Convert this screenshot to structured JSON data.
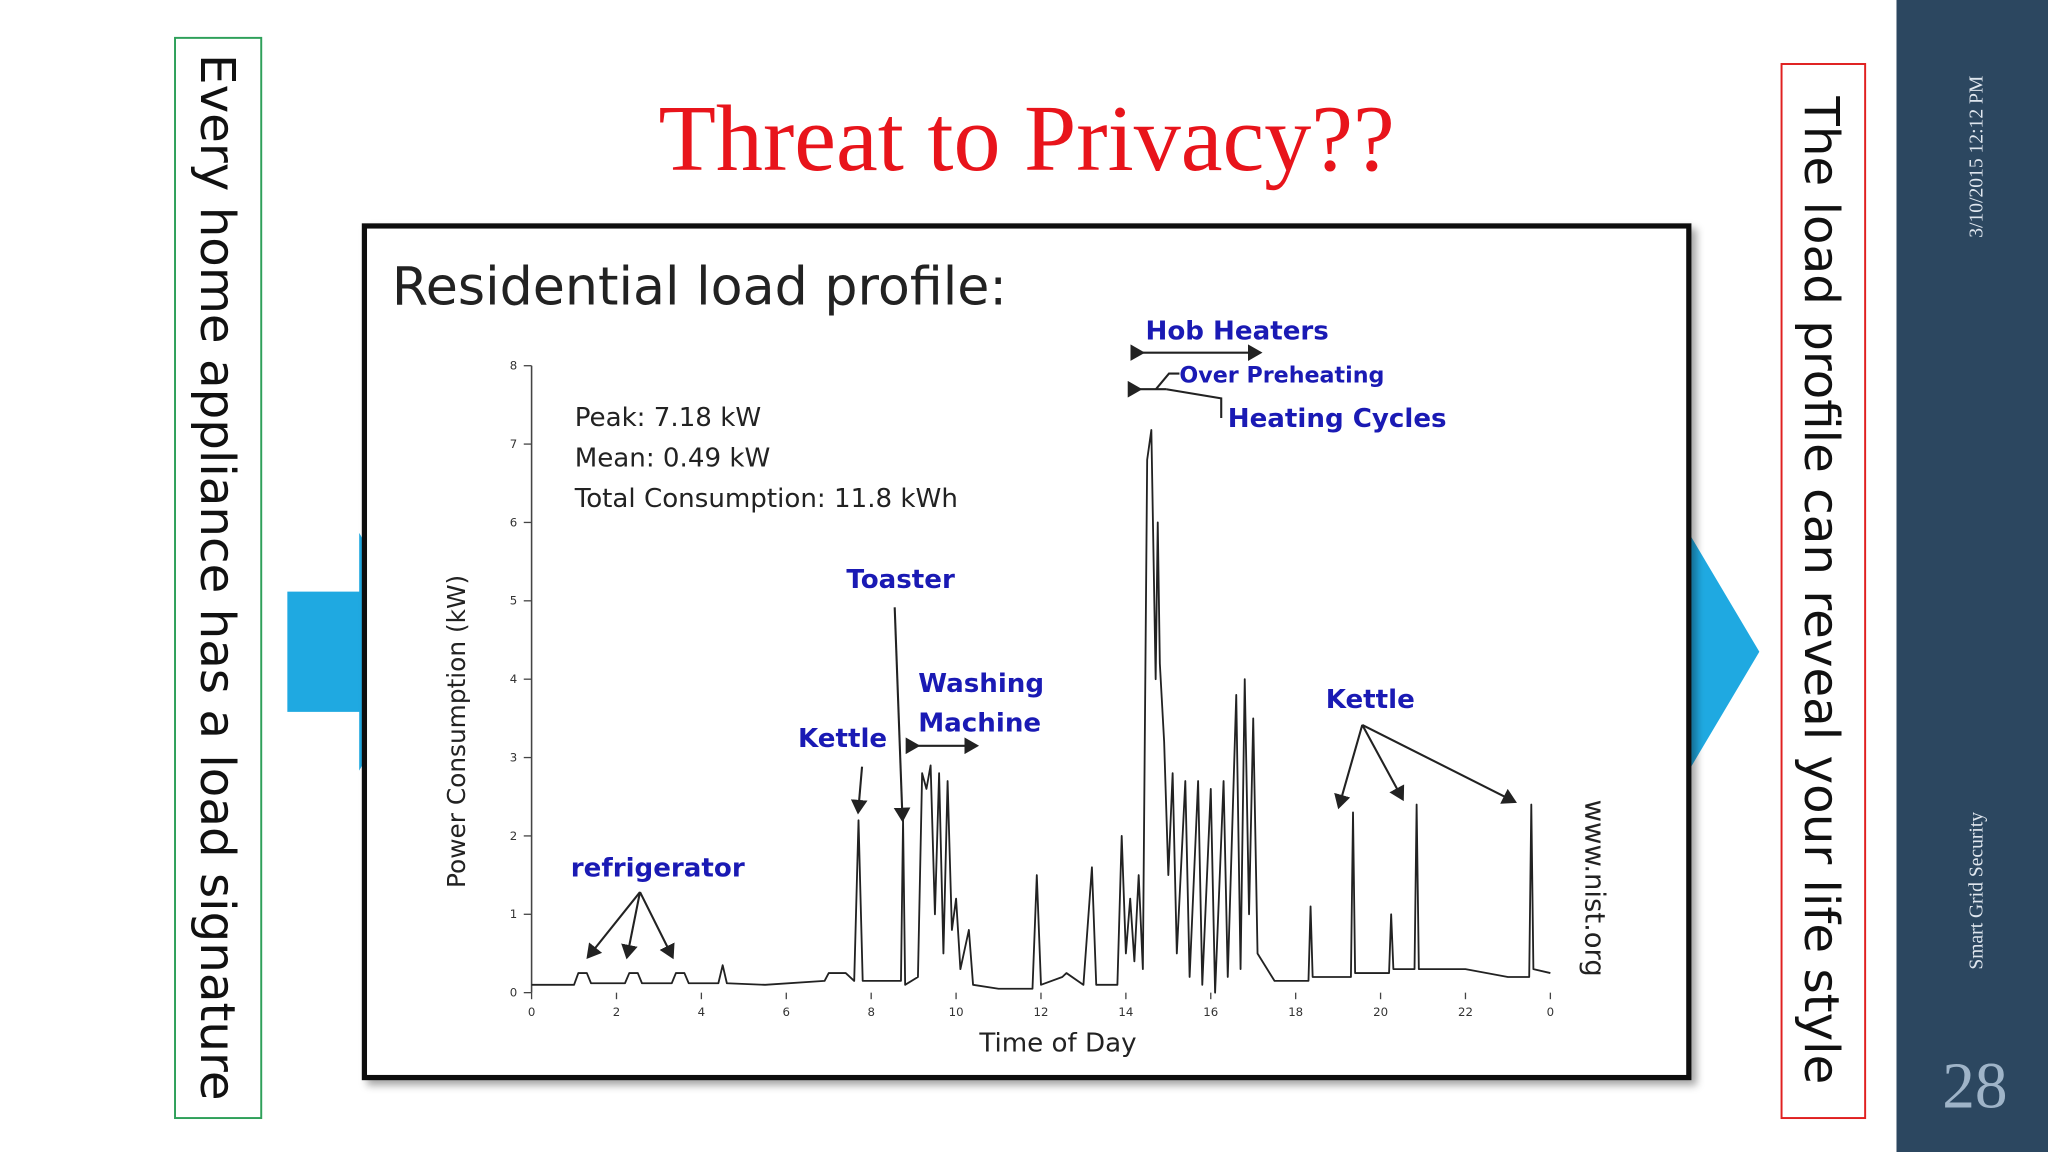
{
  "slide": {
    "title": "Threat to Privacy??",
    "left_note": "Every home appliance has a load signature",
    "right_note": "The load profile can reveal your life style",
    "date": "3/10/2015 12:12 PM",
    "footer": "Smart Grid Security",
    "page_number": "28"
  },
  "chart_data": {
    "type": "line",
    "title": "Residential load profile:",
    "xlabel": "Time of Day",
    "ylabel": "Power Consumption  (kW)",
    "source": "www.nist.org",
    "stats": [
      "Peak: 7.18 kW",
      "Mean: 0.49 kW",
      "Total Consumption: 11.8 kWh"
    ],
    "annotations": [
      "Hob Heaters",
      "Over Preheating",
      "Heating Cycles",
      "Toaster",
      "Washing",
      "Machine",
      "Kettle",
      "Kettle",
      "refrigerator"
    ],
    "annotation_color": "#1a1ab4",
    "color": "#222222",
    "xlim": [
      0,
      24
    ],
    "ylim": [
      0,
      8
    ],
    "xticks": [
      0,
      2,
      4,
      6,
      8,
      10,
      12,
      14,
      16,
      18,
      20,
      22,
      {
        "value": 24,
        "label": "0"
      }
    ],
    "yticks": [
      0,
      1,
      2,
      3,
      4,
      5,
      6,
      7,
      8
    ],
    "x": [
      0,
      1,
      1.1,
      1.3,
      1.4,
      2.2,
      2.3,
      2.5,
      2.6,
      3.3,
      3.4,
      3.6,
      3.7,
      4.4,
      4.5,
      4.6,
      5.5,
      6.9,
      7,
      7.4,
      7.6,
      7.7,
      7.8,
      8.7,
      8.75,
      8.8,
      9.1,
      9.2,
      9.3,
      9.4,
      9.5,
      9.6,
      9.7,
      9.8,
      9.9,
      10,
      10.1,
      10.3,
      10.4,
      11,
      11.8,
      11.9,
      12,
      12.5,
      12.6,
      13,
      13.2,
      13.3,
      13.8,
      13.9,
      14,
      14.1,
      14.2,
      14.3,
      14.4,
      14.5,
      14.6,
      14.7,
      14.75,
      14.8,
      14.9,
      15,
      15.1,
      15.2,
      15.4,
      15.5,
      15.7,
      15.8,
      16,
      16.1,
      16.3,
      16.4,
      16.6,
      16.7,
      16.8,
      16.9,
      17,
      17.1,
      17.5,
      18.3,
      18.35,
      18.4,
      19.3,
      19.35,
      19.4,
      20.2,
      20.25,
      20.3,
      20.8,
      20.85,
      20.9,
      22,
      23,
      23.5,
      23.55,
      23.6,
      24
    ],
    "values": [
      0.1,
      0.1,
      0.25,
      0.25,
      0.12,
      0.12,
      0.25,
      0.25,
      0.12,
      0.12,
      0.25,
      0.25,
      0.12,
      0.12,
      0.35,
      0.12,
      0.1,
      0.15,
      0.25,
      0.25,
      0.15,
      2.2,
      0.15,
      0.15,
      2.2,
      0.1,
      0.2,
      2.8,
      2.6,
      2.9,
      1.0,
      2.8,
      0.5,
      2.7,
      0.8,
      1.2,
      0.3,
      0.8,
      0.1,
      0.05,
      0.05,
      1.5,
      0.1,
      0.2,
      0.25,
      0.1,
      1.6,
      0.1,
      0.1,
      2,
      0.5,
      1.2,
      0.4,
      1.5,
      0.3,
      6.8,
      7.18,
      4,
      6,
      4.2,
      3.2,
      1.5,
      2.8,
      0.5,
      2.7,
      0.2,
      2.7,
      0.1,
      2.6,
      0,
      2.7,
      0.2,
      3.8,
      0.3,
      4,
      1,
      3.5,
      0.5,
      0.15,
      0.15,
      1.1,
      0.2,
      0.2,
      2.3,
      0.25,
      0.25,
      1,
      0.3,
      0.3,
      2.4,
      0.3,
      0.3,
      0.2,
      0.2,
      2.4,
      0.3,
      0.25
    ]
  }
}
